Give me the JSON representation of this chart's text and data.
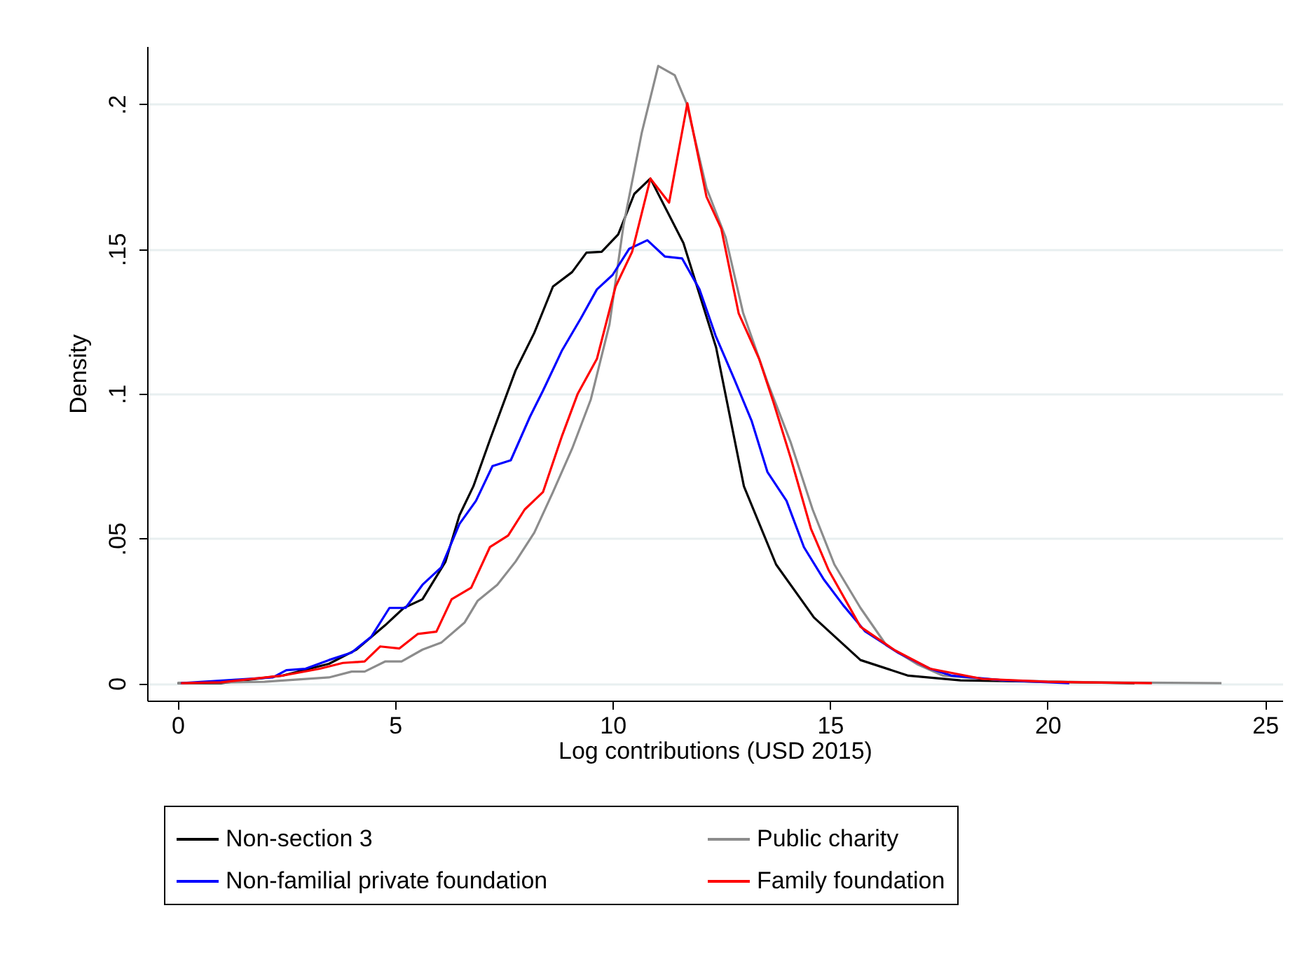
{
  "chart_data": {
    "type": "line",
    "xlabel": "Log contributions (USD 2015)",
    "ylabel": "Density",
    "xlim": [
      -0.7,
      25.4
    ],
    "xticks": [
      0,
      5,
      10,
      15,
      20,
      25
    ],
    "ylim": [
      -0.006,
      0.22
    ],
    "yticks": [
      0,
      {
        "value": 0.05,
        "label": ".05"
      },
      {
        "value": 0.1,
        "label": ".1"
      },
      {
        "value": 0.15,
        "label": ".15"
      },
      {
        "value": 0.2,
        "label": ".2"
      }
    ],
    "grid": "y",
    "legend": "bottom",
    "line_style": "solid",
    "marker": "none",
    "series": [
      {
        "name": "Non-section 3",
        "color": "#000000",
        "x": [
          0,
          1,
          2.4,
          3.48,
          4.1,
          4.77,
          5.2,
          5.63,
          6.16,
          6.48,
          6.8,
          7.18,
          7.77,
          8.2,
          8.63,
          9.07,
          9.4,
          9.75,
          10.13,
          10.5,
          10.87,
          11.63,
          12.38,
          13.02,
          13.76,
          14.63,
          15.7,
          16.8,
          18,
          22
        ],
        "values": [
          0,
          0,
          0.0026,
          0.0067,
          0.0115,
          0.02,
          0.026,
          0.029,
          0.042,
          0.058,
          0.068,
          0.084,
          0.108,
          0.121,
          0.137,
          0.142,
          0.1487,
          0.149,
          0.155,
          0.169,
          0.1743,
          0.152,
          0.116,
          0.068,
          0.041,
          0.0227,
          0.008,
          0.0026,
          0.001,
          0
        ]
      },
      {
        "name": "Public charity",
        "color": "#8c8c8c",
        "x": [
          0,
          2,
          3.48,
          4,
          4.3,
          4.77,
          5.15,
          5.63,
          6.06,
          6.6,
          6.9,
          7.35,
          7.77,
          8.2,
          8.63,
          9.07,
          9.5,
          9.93,
          10.25,
          10.67,
          11.05,
          11.43,
          11.7,
          12.16,
          12.6,
          13,
          13.56,
          14.1,
          14.6,
          15.1,
          15.7,
          16.3,
          17,
          17.6,
          19,
          21,
          24
        ],
        "values": [
          0,
          0.0005,
          0.002,
          0.004,
          0.004,
          0.0075,
          0.0075,
          0.0116,
          0.014,
          0.021,
          0.0285,
          0.034,
          0.042,
          0.052,
          0.066,
          0.081,
          0.098,
          0.124,
          0.158,
          0.19,
          0.2132,
          0.21,
          0.2003,
          0.171,
          0.154,
          0.128,
          0.104,
          0.083,
          0.06,
          0.041,
          0.026,
          0.013,
          0.0066,
          0.0026,
          0.001,
          0.0003,
          0
        ]
      },
      {
        "name": "Non-familial private foundation",
        "color": "#0000ff",
        "x": [
          0.08,
          2.19,
          2.5,
          2.94,
          3.48,
          4,
          4.45,
          4.87,
          5.24,
          5.63,
          6.06,
          6.48,
          6.86,
          7.24,
          7.66,
          8.1,
          8.4,
          8.84,
          9.27,
          9.64,
          10,
          10.38,
          10.8,
          11.2,
          11.6,
          12,
          12.37,
          12.8,
          13.2,
          13.56,
          14,
          14.4,
          14.85,
          15.3,
          15.8,
          16.57,
          17.3,
          17.8,
          19,
          20.5
        ],
        "values": [
          0,
          0.002,
          0.0045,
          0.005,
          0.008,
          0.0106,
          0.016,
          0.026,
          0.026,
          0.034,
          0.04,
          0.055,
          0.063,
          0.075,
          0.077,
          0.092,
          0.101,
          0.115,
          0.126,
          0.136,
          0.141,
          0.15,
          0.153,
          0.1474,
          0.1467,
          0.136,
          0.12,
          0.105,
          0.0905,
          0.073,
          0.063,
          0.047,
          0.036,
          0.027,
          0.018,
          0.0105,
          0.005,
          0.0026,
          0.001,
          0
        ]
      },
      {
        "name": "Family foundation",
        "color": "#ff0000",
        "x": [
          0.08,
          1,
          2.4,
          3.27,
          3.8,
          4.3,
          4.66,
          5.1,
          5.52,
          5.95,
          6.3,
          6.75,
          7.18,
          7.6,
          7.98,
          8.4,
          8.84,
          9.2,
          9.64,
          10.07,
          10.45,
          10.87,
          11.3,
          11.72,
          12.16,
          12.5,
          12.9,
          13.37,
          13.7,
          14.1,
          14.56,
          14.97,
          15.7,
          16.5,
          17.3,
          18.5,
          20,
          22.4
        ],
        "values": [
          0,
          0.0003,
          0.0026,
          0.005,
          0.007,
          0.0075,
          0.0127,
          0.012,
          0.017,
          0.0178,
          0.029,
          0.033,
          0.047,
          0.051,
          0.06,
          0.066,
          0.0855,
          0.1,
          0.112,
          0.137,
          0.149,
          0.1743,
          0.166,
          0.2003,
          0.168,
          0.157,
          0.1277,
          0.112,
          0.097,
          0.0776,
          0.0534,
          0.039,
          0.0195,
          0.0113,
          0.005,
          0.0015,
          0.0005,
          0
        ]
      }
    ]
  }
}
